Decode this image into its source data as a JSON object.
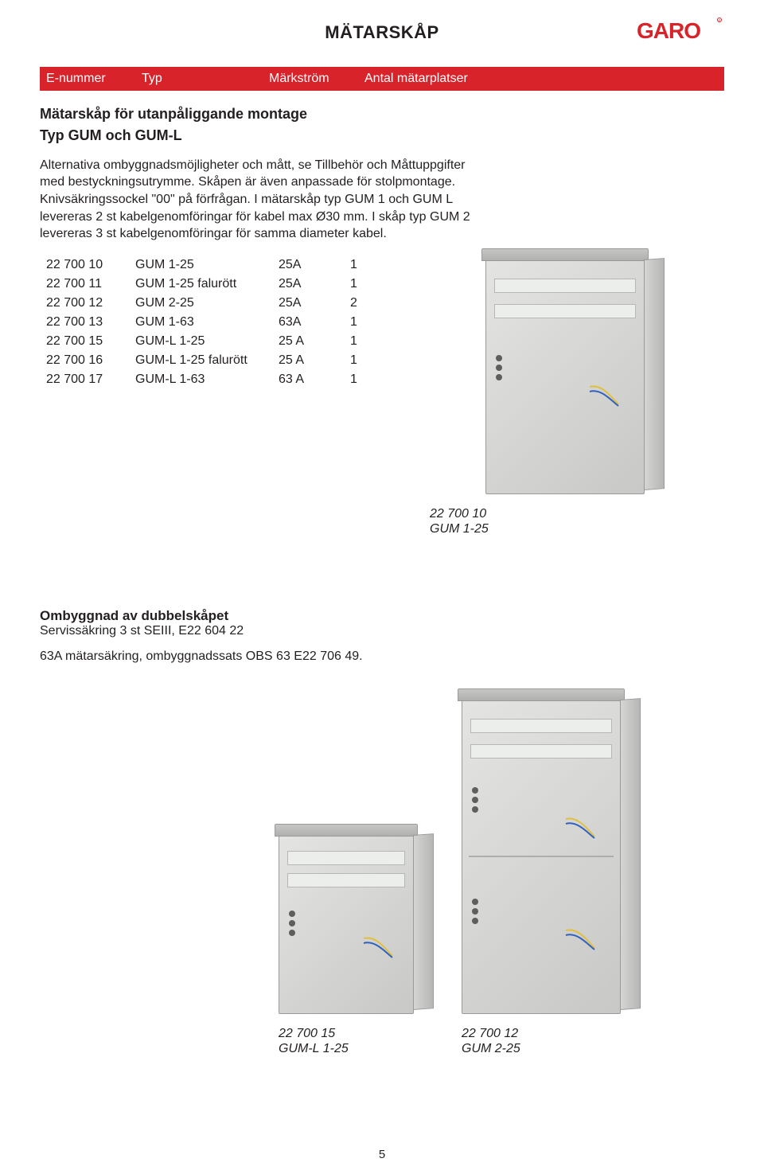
{
  "page": {
    "title": "MÄTARSKÅP",
    "number": "5"
  },
  "brand": {
    "name": "GARO",
    "logo_color": "#d8232a"
  },
  "redbar": {
    "bg": "#d8232a",
    "cols": [
      "E-nummer",
      "Typ",
      "Märkström",
      "Antal mätarplatser"
    ]
  },
  "section1": {
    "title_line1": "Mätarskåp för utanpåliggande montage",
    "title_line2": "Typ GUM och GUM-L",
    "intro": "Alternativa ombyggnadsmöjligheter och mått, se Tillbehör och Måttuppgifter med bestyckningsutrymme. Skåpen är även anpassade för stolpmontage. Knivsäkringssockel \"00\" på förfrågan.\nI mätarskåp typ GUM 1 och GUM L levereras 2 st kabelgenomföringar för kabel max Ø30 mm. I skåp typ GUM 2 levereras 3 st kabelgenomföringar för samma diameter kabel.",
    "rows": [
      [
        "22 700 10",
        "GUM 1-25",
        "25A",
        "1"
      ],
      [
        "22 700 11",
        "GUM 1-25 falurött",
        "25A",
        "1"
      ],
      [
        "22 700 12",
        "GUM 2-25",
        "25A",
        "2"
      ],
      [
        "22 700 13",
        "GUM 1-63",
        "63A",
        "1"
      ],
      [
        "22 700 15",
        "GUM-L 1-25",
        "25 A",
        "1"
      ],
      [
        "22 700 16",
        "GUM-L 1-25 falurött",
        "25 A",
        "1"
      ],
      [
        "22 700 17",
        "GUM-L 1-63",
        "63 A",
        "1"
      ]
    ],
    "image_caption_code": "22 700 10",
    "image_caption_model": "GUM 1-25"
  },
  "section2": {
    "title": "Ombyggnad av dubbelskåpet",
    "subtitle": "Servissäkring 3 st SEIII, E22 604 22",
    "line": "63A mätarsäkring, ombyggnadssats OBS 63 E22 706 49.",
    "img1_code": "22 700 15",
    "img1_model": "GUM-L 1-25",
    "img2_code": "22 700 12",
    "img2_model": "GUM 2-25"
  }
}
